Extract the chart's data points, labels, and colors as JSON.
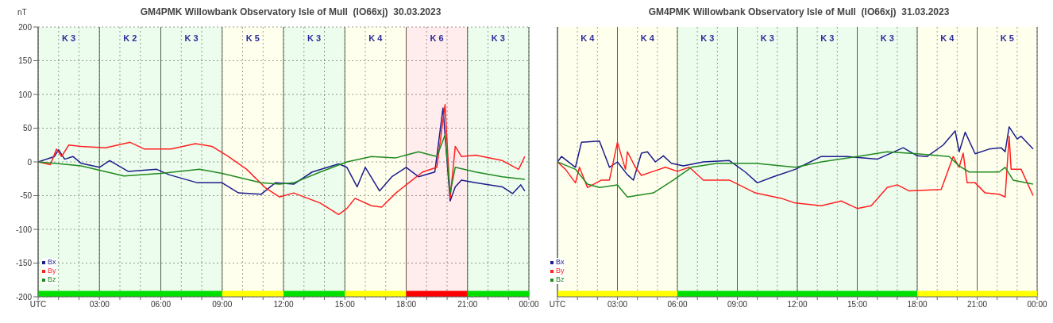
{
  "chart_data": [
    {
      "type": "line",
      "title": "GM4PMK Willowbank Observatory Isle of Mull  (IO66xj)  30.03.2023",
      "ylabel": "nT",
      "xlim": [
        0,
        24
      ],
      "ylim": [
        -200,
        200
      ],
      "xticks": [
        {
          "value": 0,
          "label": "UTC"
        },
        {
          "value": 1,
          "label": null
        },
        {
          "value": 2,
          "label": null
        },
        {
          "value": 3,
          "label": "03:00"
        },
        {
          "value": 4,
          "label": null
        },
        {
          "value": 5,
          "label": null
        },
        {
          "value": 6,
          "label": "06:00"
        },
        {
          "value": 7,
          "label": null
        },
        {
          "value": 8,
          "label": null
        },
        {
          "value": 9,
          "label": "09:00"
        },
        {
          "value": 10,
          "label": null
        },
        {
          "value": 11,
          "label": null
        },
        {
          "value": 12,
          "label": "12:00"
        },
        {
          "value": 13,
          "label": null
        },
        {
          "value": 14,
          "label": null
        },
        {
          "value": 15,
          "label": "15:00"
        },
        {
          "value": 16,
          "label": null
        },
        {
          "value": 17,
          "label": null
        },
        {
          "value": 18,
          "label": "18:00"
        },
        {
          "value": 19,
          "label": null
        },
        {
          "value": 20,
          "label": null
        },
        {
          "value": 21,
          "label": "21:00"
        },
        {
          "value": 22,
          "label": null
        },
        {
          "value": 23,
          "label": null
        },
        {
          "value": 24,
          "label": "00:00"
        }
      ],
      "yticks": [
        -200,
        -150,
        -100,
        -50,
        0,
        50,
        100,
        150,
        200
      ],
      "grid": true,
      "legend": "bottom left",
      "marker": "none",
      "line_style": "solid",
      "series": [
        {
          "name": "Bx",
          "color": "#1c1c8c",
          "x": [
            0,
            0.8,
            1,
            1.3,
            1.7,
            2.1,
            3,
            3.5,
            4.4,
            5.8,
            6.4,
            7.8,
            9,
            9.8,
            10.9,
            11.6,
            12.5,
            13.4,
            14.7,
            15.1,
            15.6,
            16,
            16.7,
            17.3,
            18,
            18.6,
            19.4,
            19.8,
            20.15,
            20.4,
            20.7,
            21.4,
            22.7,
            23.2,
            23.6,
            23.8
          ],
          "values": [
            0,
            8,
            18,
            4,
            8,
            -2,
            -8,
            2,
            -14,
            -11,
            -19,
            -31,
            -31,
            -46,
            -48,
            -31,
            -33,
            -15,
            -3,
            -8,
            -37,
            -8,
            -43,
            -22,
            -8,
            -22,
            -15,
            80,
            -58,
            -37,
            -27,
            -31,
            -37,
            -47,
            -34,
            -43
          ]
        },
        {
          "name": "By",
          "color": "#ff2020",
          "x": [
            0,
            0.6,
            0.9,
            1.15,
            1.5,
            2.1,
            3.3,
            4.5,
            5.2,
            6.5,
            7.7,
            8.5,
            9.3,
            10.2,
            11.1,
            11.8,
            12.5,
            13.8,
            14.7,
            15.1,
            15.5,
            16.3,
            16.8,
            17.5,
            18,
            18.8,
            19.5,
            19.9,
            20.15,
            20.4,
            20.7,
            21.4,
            22.7,
            23.5,
            23.8
          ],
          "values": [
            0,
            -4,
            19,
            8,
            25,
            23,
            21,
            29,
            19,
            19,
            27,
            23,
            8,
            -11,
            -38,
            -52,
            -46,
            -61,
            -78,
            -69,
            -54,
            -65,
            -67,
            -46,
            -34,
            -15,
            -8,
            85,
            -54,
            23,
            8,
            10,
            2,
            -11,
            8
          ]
        },
        {
          "name": "Bz",
          "color": "#208a20",
          "x": [
            0,
            0.8,
            2.1,
            4.2,
            6,
            7.9,
            9,
            10.9,
            11.8,
            12.5,
            13.8,
            15.1,
            16.3,
            17.5,
            18.6,
            19.5,
            19.9,
            20.15,
            20.4,
            21.4,
            22.7,
            23.8
          ],
          "values": [
            0,
            -2,
            -6,
            -21,
            -17,
            -11,
            -17,
            -31,
            -33,
            -31,
            -15,
            0,
            8,
            6,
            15,
            8,
            40,
            -46,
            -8,
            -15,
            -22,
            -26
          ]
        }
      ],
      "bands": [
        {
          "axis": "x",
          "from": 0,
          "to": 9,
          "color": "#00e000"
        },
        {
          "axis": "x",
          "from": 9,
          "to": 12,
          "color": "#ffff00"
        },
        {
          "axis": "x",
          "from": 12,
          "to": 15,
          "color": "#00e000"
        },
        {
          "axis": "x",
          "from": 15,
          "to": 18,
          "color": "#ffff00"
        },
        {
          "axis": "x",
          "from": 18,
          "to": 21,
          "color": "#ff0000"
        },
        {
          "axis": "x",
          "from": 21,
          "to": 24,
          "color": "#00e000"
        }
      ],
      "annotations": [
        "K 3",
        "K 2",
        "K 3",
        "K 5",
        "K 3",
        "K 4",
        "K 6",
        "K 3"
      ]
    },
    {
      "type": "line",
      "title": "GM4PMK Willowbank Observatory Isle of Mull  (IO66xj)  31.03.2023",
      "xlim": [
        0,
        24
      ],
      "ylim": [
        -200,
        200
      ],
      "tick_labels": "x",
      "xticks": [
        {
          "value": 0,
          "label": "UTC"
        },
        {
          "value": 1,
          "label": null
        },
        {
          "value": 2,
          "label": null
        },
        {
          "value": 3,
          "label": "03:00"
        },
        {
          "value": 4,
          "label": null
        },
        {
          "value": 5,
          "label": null
        },
        {
          "value": 6,
          "label": "06:00"
        },
        {
          "value": 7,
          "label": null
        },
        {
          "value": 8,
          "label": null
        },
        {
          "value": 9,
          "label": "09:00"
        },
        {
          "value": 10,
          "label": null
        },
        {
          "value": 11,
          "label": null
        },
        {
          "value": 12,
          "label": "12:00"
        },
        {
          "value": 13,
          "label": null
        },
        {
          "value": 14,
          "label": null
        },
        {
          "value": 15,
          "label": "15:00"
        },
        {
          "value": 16,
          "label": null
        },
        {
          "value": 17,
          "label": null
        },
        {
          "value": 18,
          "label": "18:00"
        },
        {
          "value": 19,
          "label": null
        },
        {
          "value": 20,
          "label": null
        },
        {
          "value": 21,
          "label": "21:00"
        },
        {
          "value": 22,
          "label": null
        },
        {
          "value": 23,
          "label": null
        },
        {
          "value": 24,
          "label": "00:00"
        }
      ],
      "yticks": [
        -200,
        -150,
        -100,
        -50,
        0,
        50,
        100,
        150,
        200
      ],
      "grid": true,
      "legend": "bottom left",
      "marker": "none",
      "line_style": "solid",
      "series": [
        {
          "name": "Bx",
          "color": "#1c1c8c",
          "x": [
            0,
            0.2,
            0.9,
            1.2,
            2.1,
            2.6,
            3,
            3.5,
            3.8,
            4.2,
            4.5,
            4.9,
            5.3,
            5.7,
            6.3,
            7.3,
            8.6,
            9.4,
            10,
            10.8,
            11.9,
            13.2,
            14.5,
            16,
            17.3,
            18,
            18.5,
            19.3,
            19.9,
            20.1,
            20.4,
            20.9,
            21.6,
            22.2,
            22.4,
            22.6,
            23,
            23.2,
            23.8
          ],
          "values": [
            0,
            8,
            -8,
            29,
            31,
            -8,
            0,
            -19,
            -27,
            13,
            15,
            0,
            9,
            -2,
            -6,
            0,
            2,
            -15,
            -31,
            -22,
            -11,
            8,
            8,
            4,
            21,
            9,
            8,
            25,
            46,
            15,
            44,
            12,
            19,
            21,
            15,
            52,
            34,
            38,
            19
          ]
        },
        {
          "name": "By",
          "color": "#ff2020",
          "x": [
            0,
            0.4,
            0.9,
            1.1,
            1.5,
            2.2,
            2.6,
            3,
            3.4,
            3.5,
            3.9,
            4.2,
            4.8,
            5.4,
            6,
            6.6,
            7.3,
            8.6,
            9.9,
            11.2,
            11.9,
            13.2,
            14.2,
            15,
            15.7,
            16.5,
            17,
            17.6,
            19.2,
            19.8,
            20.1,
            20.3,
            20.5,
            20.9,
            21.4,
            22.1,
            22.4,
            22.6,
            22.7,
            23.2,
            23.8
          ],
          "values": [
            0,
            -11,
            -31,
            -8,
            -38,
            -27,
            -27,
            29,
            -11,
            15,
            -8,
            -20,
            -14,
            -8,
            -14,
            -8,
            -27,
            -27,
            -46,
            -54,
            -61,
            -65,
            -58,
            -69,
            -65,
            -38,
            -34,
            -43,
            -41,
            8,
            -8,
            13,
            -31,
            -31,
            -46,
            -48,
            -52,
            38,
            -11,
            -11,
            -50
          ]
        },
        {
          "name": "Bz",
          "color": "#208a20",
          "x": [
            0,
            0.9,
            1.5,
            2.1,
            3,
            3.5,
            4.8,
            5.8,
            6.7,
            8,
            9.9,
            11.9,
            13.2,
            15,
            16.5,
            18,
            19.6,
            20.1,
            20.6,
            22.1,
            22.4,
            22.8,
            23.8
          ],
          "values": [
            0,
            -11,
            -33,
            -38,
            -34,
            -52,
            -46,
            -27,
            -8,
            -2,
            -2,
            -8,
            0,
            8,
            15,
            12,
            8,
            -6,
            -15,
            -15,
            -8,
            -27,
            -33
          ]
        }
      ],
      "bands": [
        {
          "axis": "x",
          "from": 0,
          "to": 6,
          "color": "#ffff00"
        },
        {
          "axis": "x",
          "from": 6,
          "to": 18,
          "color": "#00e000"
        },
        {
          "axis": "x",
          "from": 18,
          "to": 24,
          "color": "#ffff00"
        }
      ],
      "annotations": [
        "K 4",
        "K 4",
        "K 3",
        "K 3",
        "K 3",
        "K 3",
        "K 4",
        "K 5"
      ]
    }
  ]
}
